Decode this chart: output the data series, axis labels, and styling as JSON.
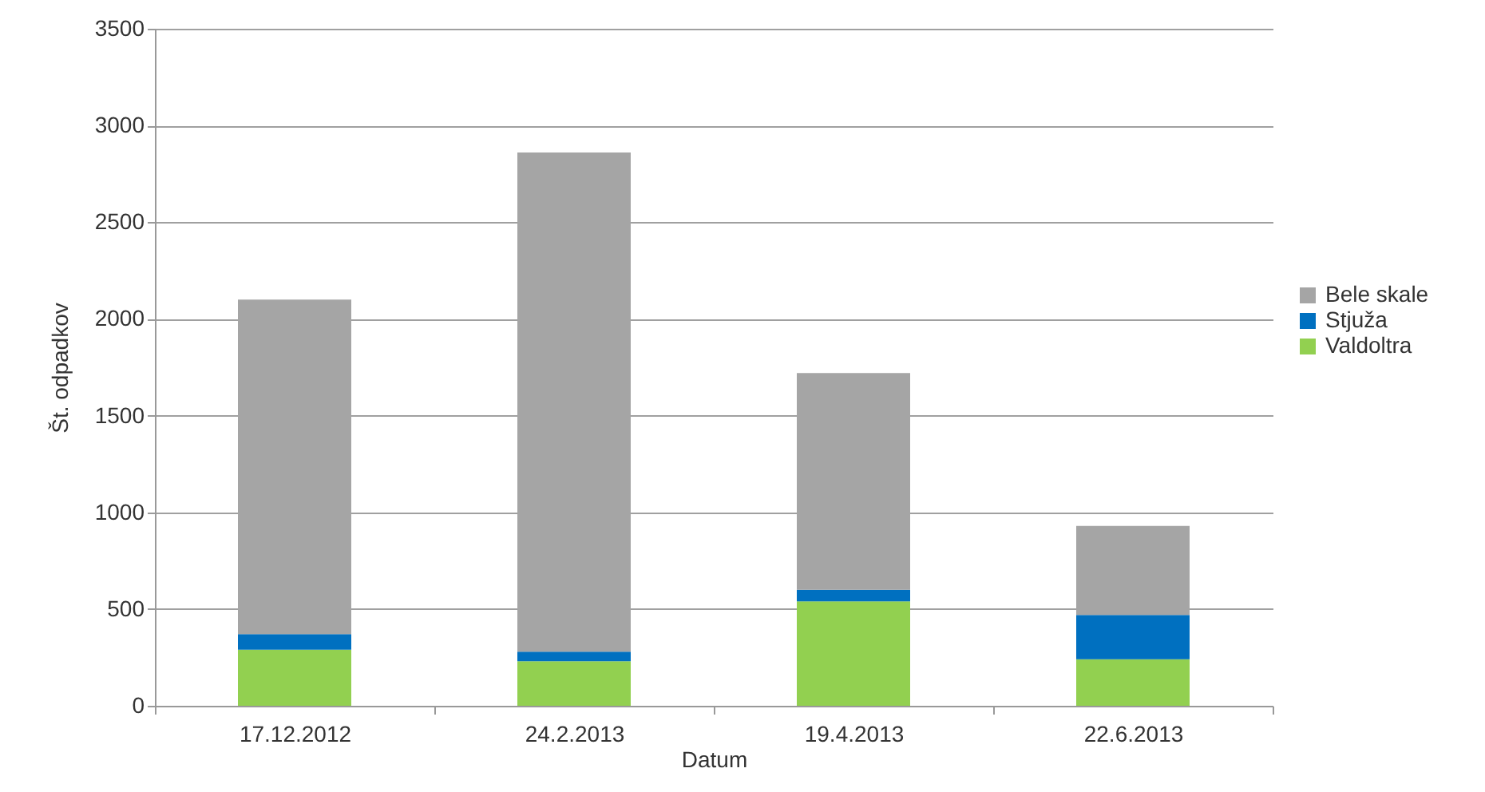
{
  "chart_data": {
    "type": "bar",
    "stacked": true,
    "xlabel": "Datum",
    "ylabel": "Št. odpadkov",
    "categories": [
      "17.12.2012",
      "24.2.2013",
      "19.4.2013",
      "22.6.2013"
    ],
    "series": [
      {
        "name": "Valdoltra",
        "color": "#92d050",
        "values": [
          290,
          230,
          540,
          240
        ]
      },
      {
        "name": "Stjuža",
        "color": "#0070c0",
        "values": [
          80,
          50,
          60,
          230
        ]
      },
      {
        "name": "Bele skale",
        "color": "#a5a5a5",
        "values": [
          1730,
          2580,
          1120,
          460
        ]
      }
    ],
    "ylim": [
      0,
      3500
    ],
    "yticks": [
      0,
      500,
      1000,
      1500,
      2000,
      2500,
      3000,
      3500
    ],
    "grid": "y",
    "legend": "right"
  }
}
